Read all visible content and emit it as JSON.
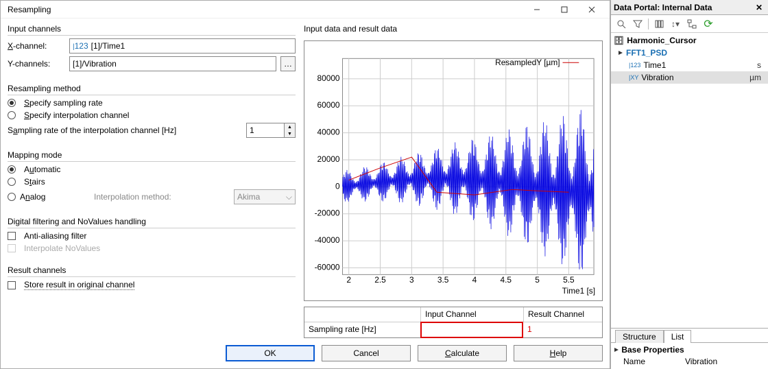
{
  "dialog": {
    "title": "Resampling",
    "input_channels_label": "Input channels",
    "x_channel_label": "X-channel:",
    "x_channel_value": "[1]/Time1",
    "x_channel_badge": "123",
    "y_channels_label": "Y-channels:",
    "y_channels_value": "[1]/Vibration",
    "resampling_method_label": "Resampling method",
    "radio_sampling_rate": "Specify sampling rate",
    "radio_interp_channel": "Specify interpolation channel",
    "sampling_rate_label": "Sampling rate of the interpolation channel [Hz]",
    "sampling_rate_value": "1",
    "mapping_mode_label": "Mapping mode",
    "radio_automatic": "Automatic",
    "radio_stairs": "Stairs",
    "radio_analog": "Analog",
    "interp_method_label": "Interpolation method:",
    "interp_method_value": "Akima",
    "filter_label": "Digital filtering and NoValues handling",
    "check_antialias": "Anti-aliasing filter",
    "check_interp_novalues": "Interpolate NoValues",
    "result_channels_label": "Result channels",
    "check_store_orig": "Store result in original channel",
    "right_header": "Input data and result data",
    "chart": {
      "legend": "ResampledY [µm]",
      "xlabel": "Time1 [s]",
      "x_ticks": [
        "2",
        "2.5",
        "3",
        "3.5",
        "4",
        "4.5",
        "5",
        "5.5"
      ],
      "y_ticks": [
        "-60000",
        "-40000",
        "-20000",
        "0",
        "20000",
        "40000",
        "60000",
        "80000"
      ],
      "xlim": [
        1.9,
        5.9
      ],
      "ylim": [
        -65000,
        95000
      ],
      "signal_color": "#0000e0",
      "resampled_color": "#cc0000",
      "grid_color": "#cccccc",
      "background": "#ffffff",
      "red_line": [
        {
          "x": 2.0,
          "y": 5000
        },
        {
          "x": 2.5,
          "y": 14000
        },
        {
          "x": 3.0,
          "y": 22000
        },
        {
          "x": 3.4,
          "y": -4000
        },
        {
          "x": 4.0,
          "y": -6000
        },
        {
          "x": 4.6,
          "y": -2000
        },
        {
          "x": 5.0,
          "y": -3000
        },
        {
          "x": 5.5,
          "y": -4000
        }
      ]
    },
    "tbl": {
      "col_input": "Input Channel",
      "col_result": "Result Channel",
      "row_label": "Sampling rate [Hz]",
      "row_input": "",
      "row_result": "1"
    },
    "buttons": {
      "ok": "OK",
      "cancel": "Cancel",
      "calculate": "Calculate",
      "help": "Help"
    }
  },
  "portal": {
    "title": "Data Portal: Internal Data",
    "root": "Harmonic_Cursor",
    "group": "FFT1_PSD",
    "channels": [
      {
        "name": "Time1",
        "unit": "s",
        "icon": "123",
        "sel": false
      },
      {
        "name": "Vibration",
        "unit": "µm",
        "icon": "XY",
        "sel": true
      }
    ],
    "tabs": {
      "structure": "Structure",
      "list": "List"
    },
    "props_header": "Base Properties",
    "props": [
      {
        "k": "Name",
        "v": "Vibration"
      }
    ]
  }
}
